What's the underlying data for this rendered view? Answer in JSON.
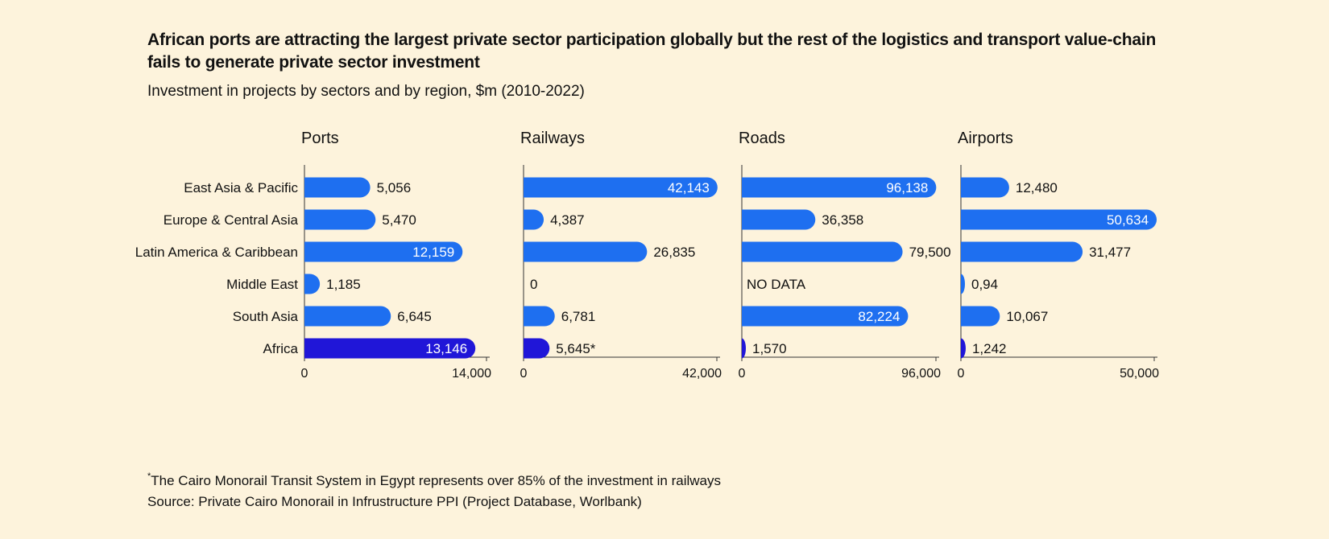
{
  "title": "African ports are attracting the largest private sector participation globally but the rest of the logistics and transport value-chain fails to generate private sector investment",
  "subtitle": "Investment in projects by sectors and by region, $m (2010-2022)",
  "colors": {
    "bar": "#1e6ff0",
    "africa_bar": "#2016d8",
    "background": "#fdf3dc",
    "label_inside": "#ffffff",
    "label_outside": "#111111"
  },
  "chart_data": {
    "type": "bar",
    "orientation": "horizontal",
    "categories": [
      "East Asia & Pacific",
      "Europe & Central Asia",
      "Latin America & Caribbean",
      "Middle East",
      "South Asia",
      "Africa"
    ],
    "highlight_category": "Africa",
    "panels": [
      {
        "name": "Ports",
        "xlim": [
          0,
          14000
        ],
        "tick_labels": [
          "0",
          "14,000"
        ],
        "values": [
          5056,
          5470,
          12159,
          1185,
          6645,
          13146
        ],
        "value_labels": [
          "5,056",
          "5,470",
          "12,159",
          "1,185",
          "6,645",
          "13,146"
        ],
        "label_inside": [
          false,
          false,
          true,
          false,
          false,
          true
        ]
      },
      {
        "name": "Railways",
        "xlim": [
          0,
          42000
        ],
        "tick_labels": [
          "0",
          "42,000"
        ],
        "values": [
          42143,
          4387,
          26835,
          0,
          6781,
          5645
        ],
        "value_labels": [
          "42,143",
          "4,387",
          "26,835",
          "0",
          "6,781",
          "5,645*"
        ],
        "label_inside": [
          true,
          false,
          false,
          false,
          false,
          false
        ]
      },
      {
        "name": "Roads",
        "xlim": [
          0,
          96000
        ],
        "tick_labels": [
          "0",
          "96,000"
        ],
        "values": [
          96138,
          36358,
          79500,
          null,
          82224,
          1570
        ],
        "value_labels": [
          "96,138",
          "36,358",
          "79,500",
          "NO DATA",
          "82,224",
          "1,570"
        ],
        "label_inside": [
          true,
          false,
          false,
          false,
          true,
          false
        ]
      },
      {
        "name": "Airports",
        "xlim": [
          0,
          50000
        ],
        "tick_labels": [
          "0",
          "50,000"
        ],
        "values": [
          12480,
          50634,
          31477,
          0.94,
          10067,
          1242
        ],
        "value_labels": [
          "12,480",
          "50,634",
          "31,477",
          "0,94",
          "10,067",
          "1,242"
        ],
        "label_inside": [
          false,
          true,
          false,
          false,
          false,
          false
        ]
      }
    ]
  },
  "footnote": {
    "marker": "*",
    "text": "The Cairo Monorail Transit System in Egypt represents over 85% of the investment in railways",
    "source": "Source: Private Cairo Monorail in Infrustructure PPI (Project Database, Worlbank)"
  }
}
